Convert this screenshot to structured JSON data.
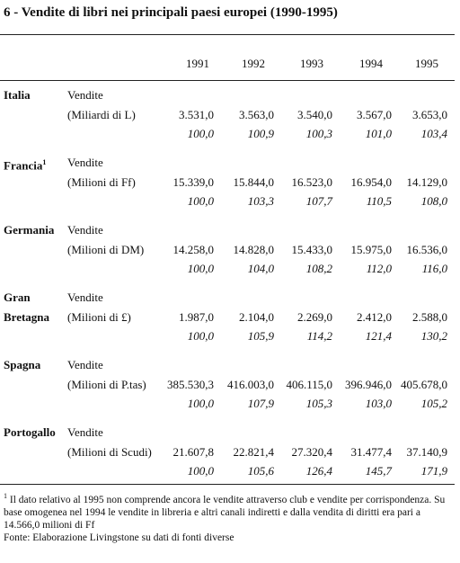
{
  "header": {
    "title": "6 - Vendite di libri nei principali paesi europei (1990-1995)"
  },
  "table": {
    "years": [
      "1991",
      "1992",
      "1993",
      "1994",
      "1995"
    ],
    "rows": [
      {
        "country": "Italia",
        "measure": "Vendite",
        "unit": "(Miliardi di L)",
        "values": [
          "3.531,0",
          "3.563,0",
          "3.540,0",
          "3.567,0",
          "3.653,0"
        ],
        "index": [
          "100,0",
          "100,9",
          "100,3",
          "101,0",
          "103,4"
        ]
      },
      {
        "country": "Francia",
        "marker": "1",
        "measure": "Vendite",
        "unit": "(Milioni di Ff)",
        "values": [
          "15.339,0",
          "15.844,0",
          "16.523,0",
          "16.954,0",
          "14.129,0"
        ],
        "index": [
          "100,0",
          "103,3",
          "107,7",
          "110,5",
          "108,0"
        ]
      },
      {
        "country": "Germania",
        "measure": "Vendite",
        "unit": "(Milioni di DM)",
        "values": [
          "14.258,0",
          "14.828,0",
          "15.433,0",
          "15.975,0",
          "16.536,0"
        ],
        "index": [
          "100,0",
          "104,0",
          "108,2",
          "112,0",
          "116,0"
        ]
      },
      {
        "country": "Gran Bretagna",
        "measure": "Vendite",
        "unit": "(Milioni di £)",
        "values": [
          "1.987,0",
          "2.104,0",
          "2.269,0",
          "2.412,0",
          "2.588,0"
        ],
        "index": [
          "100,0",
          "105,9",
          "114,2",
          "121,4",
          "130,2"
        ]
      },
      {
        "country": "Spagna",
        "measure": "Vendite",
        "unit": "(Milioni di P.tas)",
        "values": [
          "385.530,3",
          "416.003,0",
          "406.115,0",
          "396.946,0",
          "405.678,0"
        ],
        "index": [
          "100,0",
          "107,9",
          "105,3",
          "103,0",
          "105,2"
        ]
      },
      {
        "country": "Portogallo",
        "measure": "Vendite",
        "unit": "(Milioni di Scudi)",
        "values": [
          "21.607,8",
          "22.821,4",
          "27.320,4",
          "31.477,4",
          "37.140,9"
        ],
        "index": [
          "100,0",
          "105,6",
          "126,4",
          "145,7",
          "171,9"
        ]
      }
    ]
  },
  "footnote": {
    "marker": "1",
    "text": "Il dato relativo al 1995 non comprende ancora le vendite attraverso club e vendite per corrispondenza. Su base omogenea nel 1994 le vendite in libreria e altri canali indiretti e dalla vendita di diritti era pari a 14.566,0 milioni di Ff",
    "source": "Fonte: Elaborazione Livingstone su dati di fonti diverse"
  }
}
